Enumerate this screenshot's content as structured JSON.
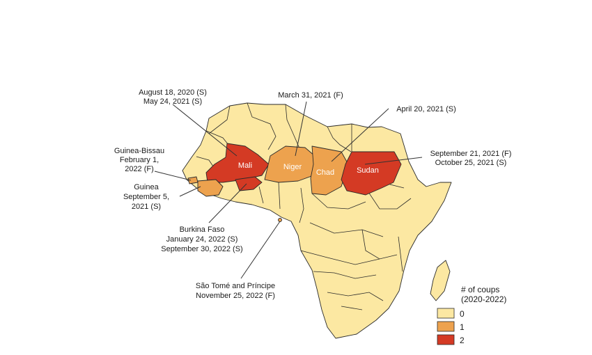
{
  "colors": {
    "zero": "#fce8a2",
    "one": "#eda24e",
    "two": "#d43a24"
  },
  "countries": {
    "mali": {
      "label": "Mali",
      "coups": 2
    },
    "niger": {
      "label": "Niger",
      "coups": 1
    },
    "chad": {
      "label": "Chad",
      "coups": 1
    },
    "sudan": {
      "label": "Sudan",
      "coups": 2
    },
    "guinea": {
      "coups": 1
    },
    "guinea_bissau": {
      "coups": 1
    },
    "burkina_faso": {
      "coups": 2
    },
    "sao_tome": {
      "coups": 1
    }
  },
  "annotations": {
    "mali": [
      "August 18, 2020 (S)",
      "May 24, 2021 (S)"
    ],
    "niger": [
      "March 31, 2021 (F)"
    ],
    "chad": [
      "April 20, 2021 (S)"
    ],
    "sudan": [
      "September 21, 2021 (F)",
      "October 25, 2021 (S)"
    ],
    "guinea_bissau": [
      "Guinea-Bissau",
      "February 1,",
      "2022 (F)"
    ],
    "guinea": [
      "Guinea",
      "September 5,",
      "2021 (S)"
    ],
    "burkina_faso": [
      "Burkina Faso",
      "January 24, 2022 (S)",
      "September 30, 2022 (S)"
    ],
    "sao_tome": [
      "São Tomé and Príncipe",
      "November 25, 2022 (F)"
    ]
  },
  "legend": {
    "title": [
      "# of coups",
      "(2020-2022)"
    ],
    "items": [
      {
        "label": "0",
        "color": "#fce8a2"
      },
      {
        "label": "1",
        "color": "#eda24e"
      },
      {
        "label": "2",
        "color": "#d43a24"
      }
    ]
  }
}
